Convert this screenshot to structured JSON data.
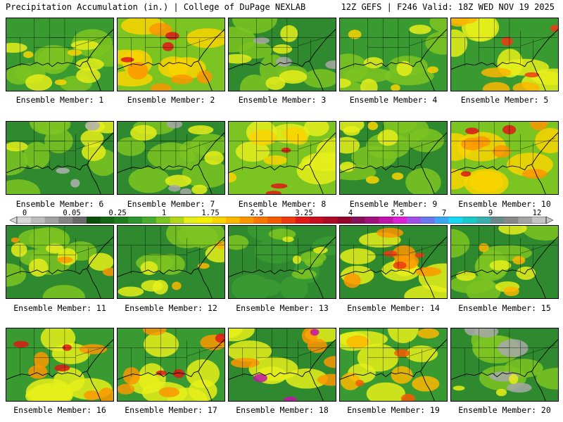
{
  "header": {
    "left": "Precipitation Accumulation (in.) | College of DuPage NEXLAB",
    "right": "12Z GEFS | F246 Valid: 18Z WED NOV 19 2025"
  },
  "colorbar": {
    "labels": [
      "0",
      "0.05",
      "0.25",
      "1",
      "1.75",
      "2.5",
      "3.25",
      "4",
      "5.5",
      "7",
      "9",
      "12"
    ],
    "colors": [
      "#d8d8d8",
      "#bdbdbd",
      "#a0a0a0",
      "#858585",
      "#6a6a6a",
      "#0b4f0b",
      "#166616",
      "#1f7d1f",
      "#2f952f",
      "#48ad2f",
      "#7cc421",
      "#b0d81a",
      "#e6ee1a",
      "#f4f000",
      "#f9d400",
      "#fbb600",
      "#fb9600",
      "#f87700",
      "#f45a00",
      "#ee3a10",
      "#e01818",
      "#c70f1f",
      "#ac0a26",
      "#93072a",
      "#86105a",
      "#a2127e",
      "#c015a8",
      "#dc20d8",
      "#a050e6",
      "#6c78f0",
      "#3ca8f4",
      "#18d8f4",
      "#1ec8c8",
      "#38b0b0",
      "#6a8a8a",
      "#888888",
      "#a4a4a4",
      "#c4c4c4"
    ]
  },
  "panels": [
    {
      "label": "Ensemble Member: 1",
      "palette": [
        "#3a9a32",
        "#7cc421",
        "#e6ee1a",
        "#f9d400"
      ]
    },
    {
      "label": "Ensemble Member: 2",
      "palette": [
        "#7cc421",
        "#f9d400",
        "#fb9600",
        "#e01818"
      ]
    },
    {
      "label": "Ensemble Member: 3",
      "palette": [
        "#2f8a2f",
        "#7cc421",
        "#e6ee1a",
        "#a8a8a8"
      ]
    },
    {
      "label": "Ensemble Member: 4",
      "palette": [
        "#3a9a32",
        "#7cc421",
        "#e6ee1a",
        "#f9d400"
      ]
    },
    {
      "label": "Ensemble Member: 5",
      "palette": [
        "#3a9a32",
        "#e6ee1a",
        "#fbb600",
        "#ee3a10"
      ]
    },
    {
      "label": "Ensemble Member: 6",
      "palette": [
        "#2f8a2f",
        "#7cc421",
        "#e6ee1a",
        "#b0b0b0"
      ]
    },
    {
      "label": "Ensemble Member: 7",
      "palette": [
        "#2f8a2f",
        "#7cc421",
        "#e6ee1a",
        "#a8a8a8"
      ]
    },
    {
      "label": "Ensemble Member: 8",
      "palette": [
        "#7cc421",
        "#e6ee1a",
        "#f9d400",
        "#e01818"
      ]
    },
    {
      "label": "Ensemble Member: 9",
      "palette": [
        "#2f8a2f",
        "#7cc421",
        "#e6ee1a",
        "#f9d400"
      ]
    },
    {
      "label": "Ensemble Member: 10",
      "palette": [
        "#7cc421",
        "#f9d400",
        "#fb9600",
        "#e01818"
      ]
    },
    {
      "label": "Ensemble Member: 11",
      "palette": [
        "#2f8a2f",
        "#7cc421",
        "#e6ee1a",
        "#fb9600"
      ]
    },
    {
      "label": "Ensemble Member: 12",
      "palette": [
        "#2f8a2f",
        "#7cc421",
        "#e6ee1a",
        "#fbb600"
      ]
    },
    {
      "label": "Ensemble Member: 13",
      "palette": [
        "#2f8a2f",
        "#3a9a32",
        "#7cc421",
        "#e6ee1a"
      ]
    },
    {
      "label": "Ensemble Member: 14",
      "palette": [
        "#2f8a2f",
        "#e6ee1a",
        "#fb9600",
        "#ee3a10"
      ]
    },
    {
      "label": "Ensemble Member: 15",
      "palette": [
        "#2f8a2f",
        "#7cc421",
        "#e6ee1a",
        "#fbb600"
      ]
    },
    {
      "label": "Ensemble Member: 16",
      "palette": [
        "#3a9a32",
        "#e6ee1a",
        "#fb9600",
        "#e01818"
      ]
    },
    {
      "label": "Ensemble Member: 17",
      "palette": [
        "#3a9a32",
        "#e6ee1a",
        "#fb9600",
        "#e01818"
      ]
    },
    {
      "label": "Ensemble Member: 18",
      "palette": [
        "#2f8a2f",
        "#e6ee1a",
        "#fb9600",
        "#c015a8"
      ]
    },
    {
      "label": "Ensemble Member: 19",
      "palette": [
        "#3a9a32",
        "#e6ee1a",
        "#fbb600",
        "#f45a00"
      ]
    },
    {
      "label": "Ensemble Member: 20",
      "palette": [
        "#2f8a2f",
        "#7cc421",
        "#a8a8a8",
        "#e6ee1a"
      ]
    }
  ]
}
